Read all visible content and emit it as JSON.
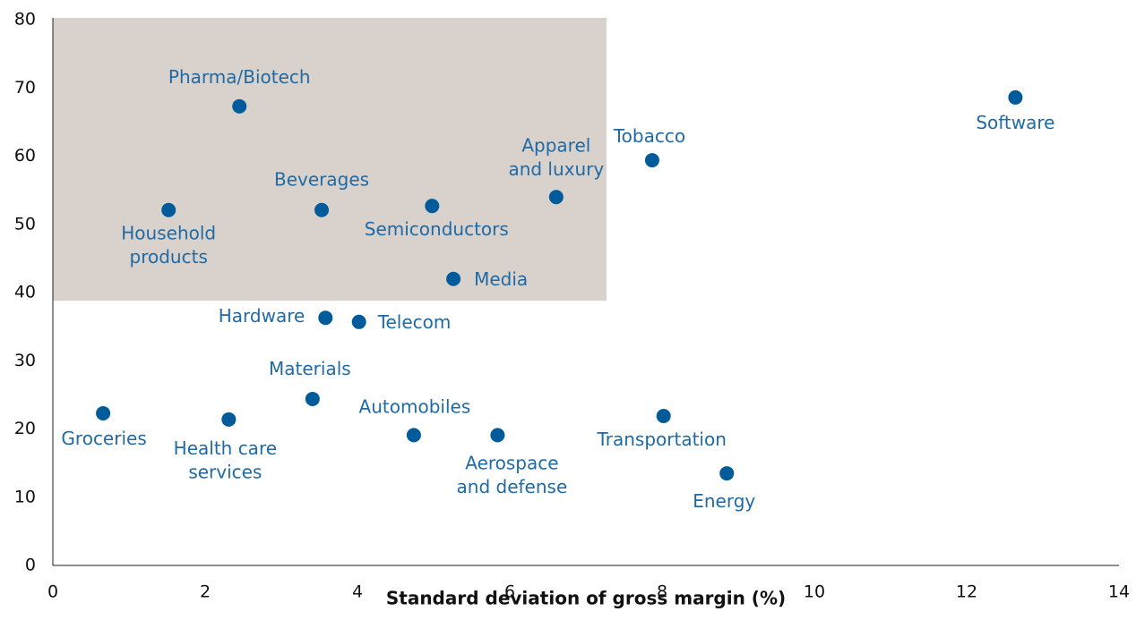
{
  "chart_data": {
    "type": "scatter",
    "xlabel": "Standard deviation of gross margin (%)",
    "xlim": [
      0,
      14
    ],
    "ylim": [
      0,
      80
    ],
    "xticks": [
      0,
      2,
      4,
      6,
      8,
      10,
      12,
      14
    ],
    "yticks": [
      0,
      10,
      20,
      30,
      40,
      50,
      60,
      70,
      80
    ],
    "color": "#005b9a",
    "label_color": "#1f6aa5",
    "highlight": {
      "xlim": [
        0,
        7.27
      ],
      "ylim": [
        38.8,
        80
      ],
      "color": "#d9d2cc"
    },
    "x": [
      2.45,
      1.52,
      3.53,
      4.98,
      6.61,
      5.26,
      7.87,
      12.64,
      3.58,
      4.02,
      3.41,
      0.66,
      2.31,
      4.74,
      5.84,
      8.02,
      8.85
    ],
    "values": [
      67.3,
      52.1,
      52.1,
      52.7,
      54.0,
      42.0,
      59.4,
      68.6,
      36.3,
      35.7,
      24.4,
      22.3,
      21.4,
      19.1,
      19.1,
      21.9,
      13.5
    ],
    "point_labels": [
      [
        "Pharma/Biotech"
      ],
      [
        "Household",
        "products"
      ],
      [
        "Beverages"
      ],
      [
        "Semiconductors"
      ],
      [
        "Apparel",
        "and luxury"
      ],
      [
        "Media"
      ],
      [
        "Tobacco"
      ],
      [
        "Software"
      ],
      [
        "Hardware"
      ],
      [
        "Telecom"
      ],
      [
        "Materials"
      ],
      [
        "Groceries"
      ],
      [
        "Health care",
        "services"
      ],
      [
        "Automobiles"
      ],
      [
        "Aerospace",
        "and defense"
      ],
      [
        "Transportation"
      ],
      [
        "Energy"
      ]
    ]
  }
}
